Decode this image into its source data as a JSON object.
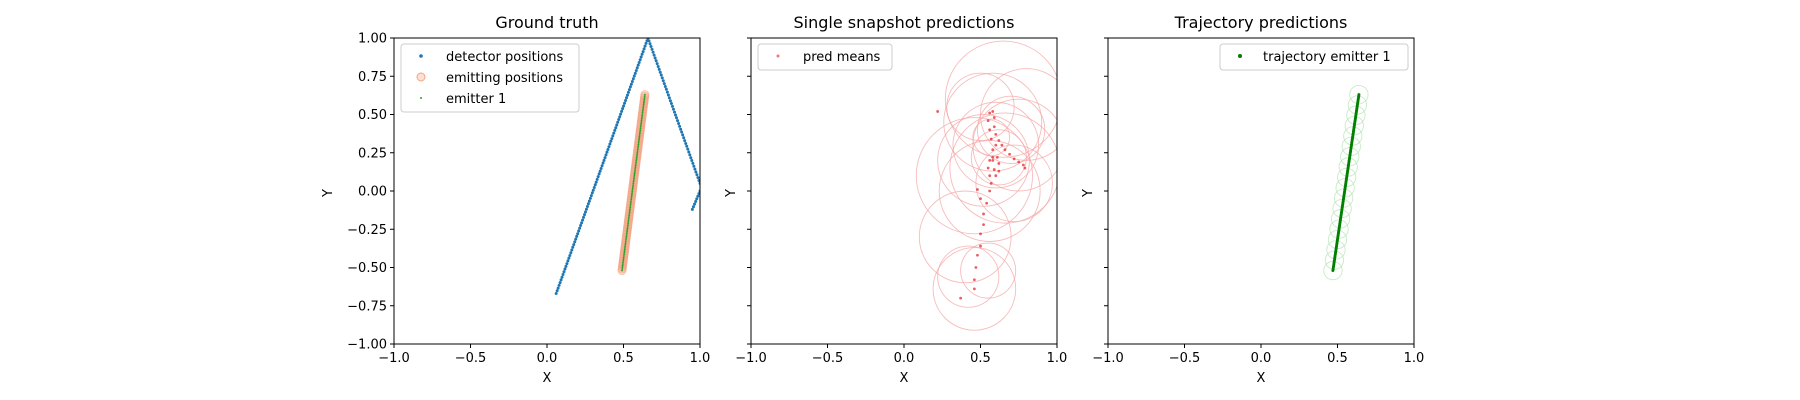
{
  "chart_data": [
    {
      "type": "scatter",
      "title": "Ground truth",
      "xlabel": "X",
      "ylabel": "Y",
      "xlim": [
        -1.0,
        1.0
      ],
      "ylim": [
        -1.0,
        1.0
      ],
      "xticks": [
        "−1.0",
        "−0.5",
        "0.0",
        "0.5",
        "1.0"
      ],
      "yticks": [
        "−1.00",
        "−0.75",
        "−0.50",
        "−0.25",
        "0.00",
        "0.25",
        "0.50",
        "0.75",
        "1.00"
      ],
      "legend_position": "top-left",
      "series": [
        {
          "name": "detector positions",
          "color": "#1f77b4",
          "marker": "small-dot",
          "segments": [
            {
              "from": [
                0.06,
                -0.67
              ],
              "to": [
                0.66,
                1.0
              ],
              "n": 95
            },
            {
              "from": [
                0.66,
                1.0
              ],
              "to": [
                1.0,
                0.05
              ],
              "n": 52
            },
            {
              "from": [
                0.95,
                -0.12
              ],
              "to": [
                1.0,
                0.0
              ],
              "n": 8
            }
          ]
        },
        {
          "name": "emitting positions",
          "color": "#f4a582",
          "marker": "hollow-circle",
          "segments": [
            {
              "from": [
                0.49,
                -0.52
              ],
              "to": [
                0.64,
                0.63
              ],
              "n": 110
            }
          ]
        },
        {
          "name": "emitter 1",
          "color": "#2ca02c",
          "marker": "tiny-dot",
          "segments": [
            {
              "from": [
                0.49,
                -0.52
              ],
              "to": [
                0.64,
                0.63
              ],
              "n": 110
            }
          ]
        }
      ]
    },
    {
      "type": "scatter",
      "title": "Single snapshot predictions",
      "xlabel": "X",
      "ylabel": "Y",
      "xlim": [
        -1.0,
        1.0
      ],
      "ylim": [
        -1.0,
        1.0
      ],
      "xticks": [
        "−1.0",
        "−0.5",
        "0.0",
        "0.5",
        "1.0"
      ],
      "legend_position": "top-left",
      "series": [
        {
          "name": "pred means",
          "color": "#e41a1c",
          "marker": "small-dot",
          "path": [
            [
              0.46,
              -0.64
            ],
            [
              0.46,
              -0.58
            ],
            [
              0.47,
              -0.5
            ],
            [
              0.48,
              -0.42
            ],
            [
              0.5,
              -0.36
            ],
            [
              0.5,
              -0.28
            ],
            [
              0.52,
              -0.22
            ],
            [
              0.52,
              -0.15
            ],
            [
              0.54,
              -0.08
            ],
            [
              0.56,
              0.0
            ],
            [
              0.57,
              0.05
            ],
            [
              0.56,
              0.1
            ],
            [
              0.55,
              0.15
            ],
            [
              0.56,
              0.2
            ],
            [
              0.58,
              0.22
            ],
            [
              0.61,
              0.22
            ],
            [
              0.62,
              0.18
            ],
            [
              0.62,
              0.13
            ],
            [
              0.6,
              0.1
            ],
            [
              0.59,
              0.14
            ],
            [
              0.58,
              0.2
            ],
            [
              0.58,
              0.27
            ],
            [
              0.57,
              0.34
            ],
            [
              0.56,
              0.4
            ],
            [
              0.55,
              0.46
            ],
            [
              0.56,
              0.51
            ],
            [
              0.58,
              0.52
            ],
            [
              0.59,
              0.48
            ],
            [
              0.59,
              0.42
            ],
            [
              0.6,
              0.37
            ],
            [
              0.62,
              0.33
            ],
            [
              0.64,
              0.3
            ],
            [
              0.66,
              0.27
            ],
            [
              0.69,
              0.24
            ],
            [
              0.72,
              0.21
            ],
            [
              0.75,
              0.19
            ],
            [
              0.78,
              0.17
            ],
            [
              0.79,
              0.15
            ]
          ],
          "extra_points": [
            [
              0.22,
              0.52
            ],
            [
              0.37,
              -0.7
            ],
            [
              0.5,
              -0.05
            ],
            [
              0.48,
              0.01
            ],
            [
              0.6,
              0.3
            ]
          ]
        }
      ],
      "uncertainty_circles": {
        "color": "#f4a6a6",
        "circles": [
          [
            0.46,
            -0.64,
            0.27
          ],
          [
            0.42,
            -0.56,
            0.2
          ],
          [
            0.55,
            -0.52,
            0.18
          ],
          [
            0.4,
            -0.3,
            0.3
          ],
          [
            0.56,
            0.0,
            0.33
          ],
          [
            0.46,
            0.1,
            0.38
          ],
          [
            0.52,
            0.2,
            0.3
          ],
          [
            0.6,
            0.3,
            0.28
          ],
          [
            0.58,
            0.45,
            0.32
          ],
          [
            0.65,
            0.6,
            0.38
          ],
          [
            0.7,
            0.4,
            0.22
          ],
          [
            0.62,
            0.22,
            0.18
          ],
          [
            0.75,
            0.3,
            0.3
          ],
          [
            0.5,
            0.55,
            0.22
          ],
          [
            0.66,
            0.15,
            0.36
          ],
          [
            0.57,
            0.35,
            0.12
          ],
          [
            0.8,
            0.5,
            0.3
          ],
          [
            0.72,
            0.05,
            0.25
          ]
        ]
      }
    },
    {
      "type": "scatter",
      "title": "Trajectory predictions",
      "xlabel": "X",
      "ylabel": "Y",
      "xlim": [
        -1.0,
        1.0
      ],
      "ylim": [
        -1.0,
        1.0
      ],
      "xticks": [
        "−1.0",
        "−0.5",
        "0.0",
        "0.5",
        "1.0"
      ],
      "legend_position": "top-right",
      "series": [
        {
          "name": "trajectory emitter 1",
          "color": "#008000",
          "marker": "small-dot",
          "segments": [
            {
              "from": [
                0.47,
                -0.52
              ],
              "to": [
                0.64,
                0.63
              ],
              "n": 110
            }
          ]
        }
      ],
      "uncertainty_circles": {
        "color": "#b5e3b5",
        "along": {
          "from": [
            0.47,
            -0.52
          ],
          "to": [
            0.64,
            0.63
          ],
          "n": 18,
          "r": 0.06
        }
      }
    }
  ]
}
